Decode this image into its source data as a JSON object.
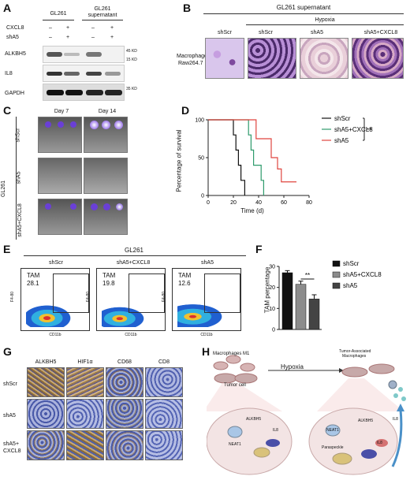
{
  "panels": {
    "a": "A",
    "b": "B",
    "c": "C",
    "d": "D",
    "e": "E",
    "f": "F",
    "g": "G",
    "h": "H"
  },
  "panel_a": {
    "col_gl261": "GL261",
    "col_supernatant_l1": "GL261",
    "col_supernatant_l2": "supernatant",
    "row_cxcl8": "CXCL8",
    "row_sha5": "shA5",
    "cxcl8_signs": [
      "–",
      "+",
      "–",
      "+"
    ],
    "sha5_signs": [
      "–",
      "+",
      "–",
      "+"
    ],
    "blot_labels": [
      "ALKBH5",
      "IL8",
      "GAPDH"
    ],
    "kd_labels": [
      "45 KD",
      "15 KD",
      "35 KD"
    ]
  },
  "panel_b": {
    "top_header": "GL261 supernatant",
    "hypoxia": "Hypoxia",
    "columns": [
      "shScr",
      "shScr",
      "shA5",
      "shA5+CXCL8"
    ],
    "row_label_l1": "Macrophage",
    "row_label_l2": "Raw264.7"
  },
  "panel_c": {
    "days": [
      "Day 7",
      "Day 14"
    ],
    "cell_line": "GL261",
    "rows": [
      "shScr",
      "shA5",
      "shA5+CXCL8"
    ]
  },
  "panel_d": {
    "ylabel": "Percentage of survival",
    "xlabel": "Time (d)",
    "significance": "**"
  },
  "panel_e": {
    "title": "GL261",
    "plots": [
      {
        "name": "shScr",
        "gate": "TAM",
        "value": "28.1"
      },
      {
        "name": "shA5+CXCL8",
        "gate": "TAM",
        "value": "19.8"
      },
      {
        "name": "shA5",
        "gate": "TAM",
        "value": "12.6"
      }
    ],
    "ylabel": "F4-80",
    "xlabel": "CD11b"
  },
  "panel_f": {
    "ylabel": "TAM percentage",
    "significance": "**"
  },
  "panel_g": {
    "columns": [
      "ALKBH5",
      "HIF1α",
      "CD68",
      "CD8"
    ],
    "rows": [
      "shScr",
      "shA5",
      "shA5+"
    ],
    "row3_l2": "CXCL8"
  },
  "panel_h": {
    "macrophages_m1": "Macrophages M1",
    "tumor_cell": "Tumor cell",
    "hypoxia": "Hypoxia",
    "tam_l1": "Tumor-Associated",
    "tam_l2": "Macrophages",
    "il8_labels": [
      "IL8",
      "IL8",
      "IL8"
    ],
    "alkbh5_labels": [
      "ALKBH5",
      "ALKBH5"
    ],
    "neat1_labels": [
      "NEAT1",
      "NEAT1"
    ],
    "paraspeckle": "Paraspeckle"
  },
  "chart_data": [
    {
      "type": "line",
      "panel": "D",
      "xlabel": "Time (d)",
      "ylabel": "Percentage of survival",
      "xlim": [
        0,
        80
      ],
      "ylim": [
        0,
        100
      ],
      "xticks": [
        0,
        20,
        40,
        60,
        80
      ],
      "yticks": [
        0,
        50,
        100
      ],
      "series": [
        {
          "name": "shScr",
          "color": "#111111",
          "points": [
            [
              0,
              100
            ],
            [
              20,
              100
            ],
            [
              20,
              80
            ],
            [
              22,
              80
            ],
            [
              22,
              60
            ],
            [
              24,
              60
            ],
            [
              24,
              40
            ],
            [
              26,
              40
            ],
            [
              26,
              20
            ],
            [
              29,
              20
            ],
            [
              29,
              0
            ]
          ]
        },
        {
          "name": "shA5+CXCL8",
          "color": "#2e9b6c",
          "points": [
            [
              0,
              100
            ],
            [
              32,
              100
            ],
            [
              32,
              80
            ],
            [
              34,
              80
            ],
            [
              34,
              60
            ],
            [
              36,
              60
            ],
            [
              36,
              40
            ],
            [
              42,
              40
            ],
            [
              42,
              20
            ],
            [
              44,
              20
            ],
            [
              44,
              0
            ]
          ]
        },
        {
          "name": "shA5",
          "color": "#e0453f",
          "points": [
            [
              0,
              100
            ],
            [
              38,
              100
            ],
            [
              38,
              75
            ],
            [
              50,
              75
            ],
            [
              50,
              50
            ],
            [
              55,
              50
            ],
            [
              55,
              35
            ],
            [
              58,
              35
            ],
            [
              58,
              18
            ],
            [
              70,
              18
            ]
          ]
        }
      ],
      "significance": "**"
    },
    {
      "type": "bar",
      "panel": "F",
      "categories": [
        "shScr",
        "shA5+CXCL8",
        "shA5"
      ],
      "values": [
        27,
        21.5,
        14.5
      ],
      "errors": [
        1,
        1.5,
        2
      ],
      "ylabel": "TAM percentage",
      "ylim": [
        0,
        30
      ],
      "yticks": [
        0,
        10,
        20,
        30
      ],
      "colors": [
        "#111111",
        "#8c8c8c",
        "#444444"
      ],
      "significance": "**"
    }
  ]
}
